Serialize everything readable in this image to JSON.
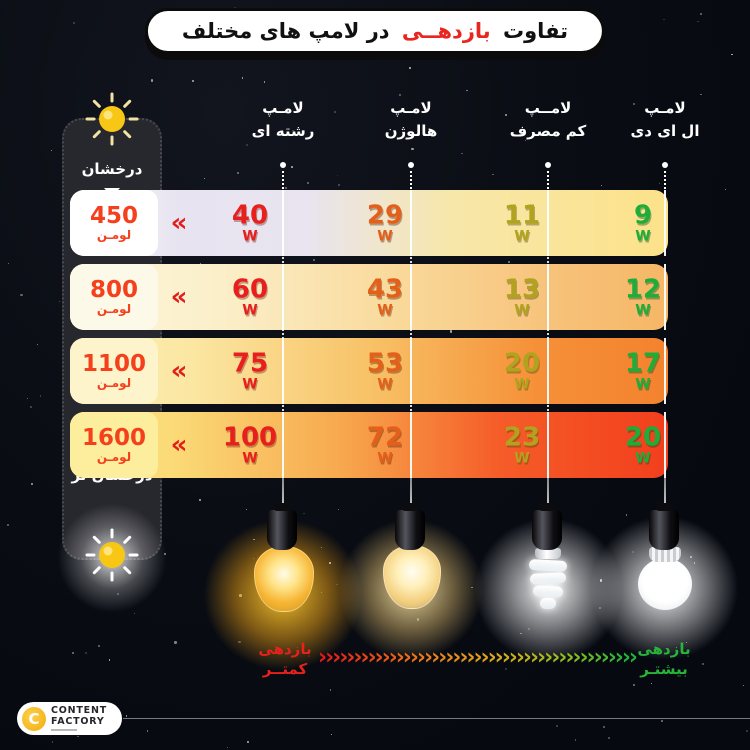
{
  "title": {
    "pre": "تفاوت",
    "highlight": "بازدهــی",
    "post": "در لامپ های مختلف"
  },
  "columns": [
    {
      "l1": "لامـپ",
      "l2": "رشته ای"
    },
    {
      "l1": "لامـپ",
      "l2": "هالوژن"
    },
    {
      "l1": "لامــپ",
      "l2": "کم مصرف"
    },
    {
      "l1": "لامـپ",
      "l2": "ال ای دی"
    }
  ],
  "sidebar": {
    "top": "درخشان",
    "bottom": "درخشان تر"
  },
  "marker": "«",
  "watt": "W",
  "lumen_unit": "لومـن",
  "rows": [
    {
      "lumen": "450",
      "w0": "40",
      "w1": "29",
      "w2": "11",
      "w3": "9"
    },
    {
      "lumen": "800",
      "w0": "60",
      "w1": "43",
      "w2": "13",
      "w3": "12"
    },
    {
      "lumen": "1100",
      "w0": "75",
      "w1": "53",
      "w2": "20",
      "w3": "17"
    },
    {
      "lumen": "1600",
      "w0": "100",
      "w1": "72",
      "w2": "23",
      "w3": "20"
    }
  ],
  "legend": {
    "left1": "بازدهی",
    "left2": "کمتــر",
    "right1": "بازدهی",
    "right2": "بیشتـر",
    "arrow_char": "›"
  },
  "logo": {
    "mark": "C",
    "line1": "CONTENT",
    "line2": "FACTORY"
  },
  "colors": {
    "highlight_red": "#e8251f",
    "value_red": "#e81f1c",
    "value_orange": "#e4601a",
    "value_olive": "#b1a31f",
    "value_green": "#1fad3a",
    "lumen_text": "#f4401c",
    "legend_less": "#e8211c",
    "legend_more": "#27b43a",
    "logo_yellow": "#f6b61e"
  },
  "chart_data": {
    "type": "table",
    "title": "تفاوت بازدهی در لامپ های مختلف",
    "categories": [
      "لامپ رشته ای",
      "لامپ هالوژن",
      "لامپ کم مصرف",
      "لامپ ال ای دی"
    ],
    "row_label": "لومن",
    "rows": [
      {
        "lumens": 450,
        "watts": [
          40,
          29,
          11,
          9
        ]
      },
      {
        "lumens": 800,
        "watts": [
          60,
          43,
          13,
          12
        ]
      },
      {
        "lumens": 1100,
        "watts": [
          75,
          53,
          20,
          17
        ]
      },
      {
        "lumens": 1600,
        "watts": [
          100,
          72,
          23,
          20
        ]
      }
    ],
    "legend": {
      "left": "بازدهی کمتر",
      "right": "بازدهی بیشتر"
    },
    "notes": "brightness increases downward: درخشان → درخشان تر"
  }
}
